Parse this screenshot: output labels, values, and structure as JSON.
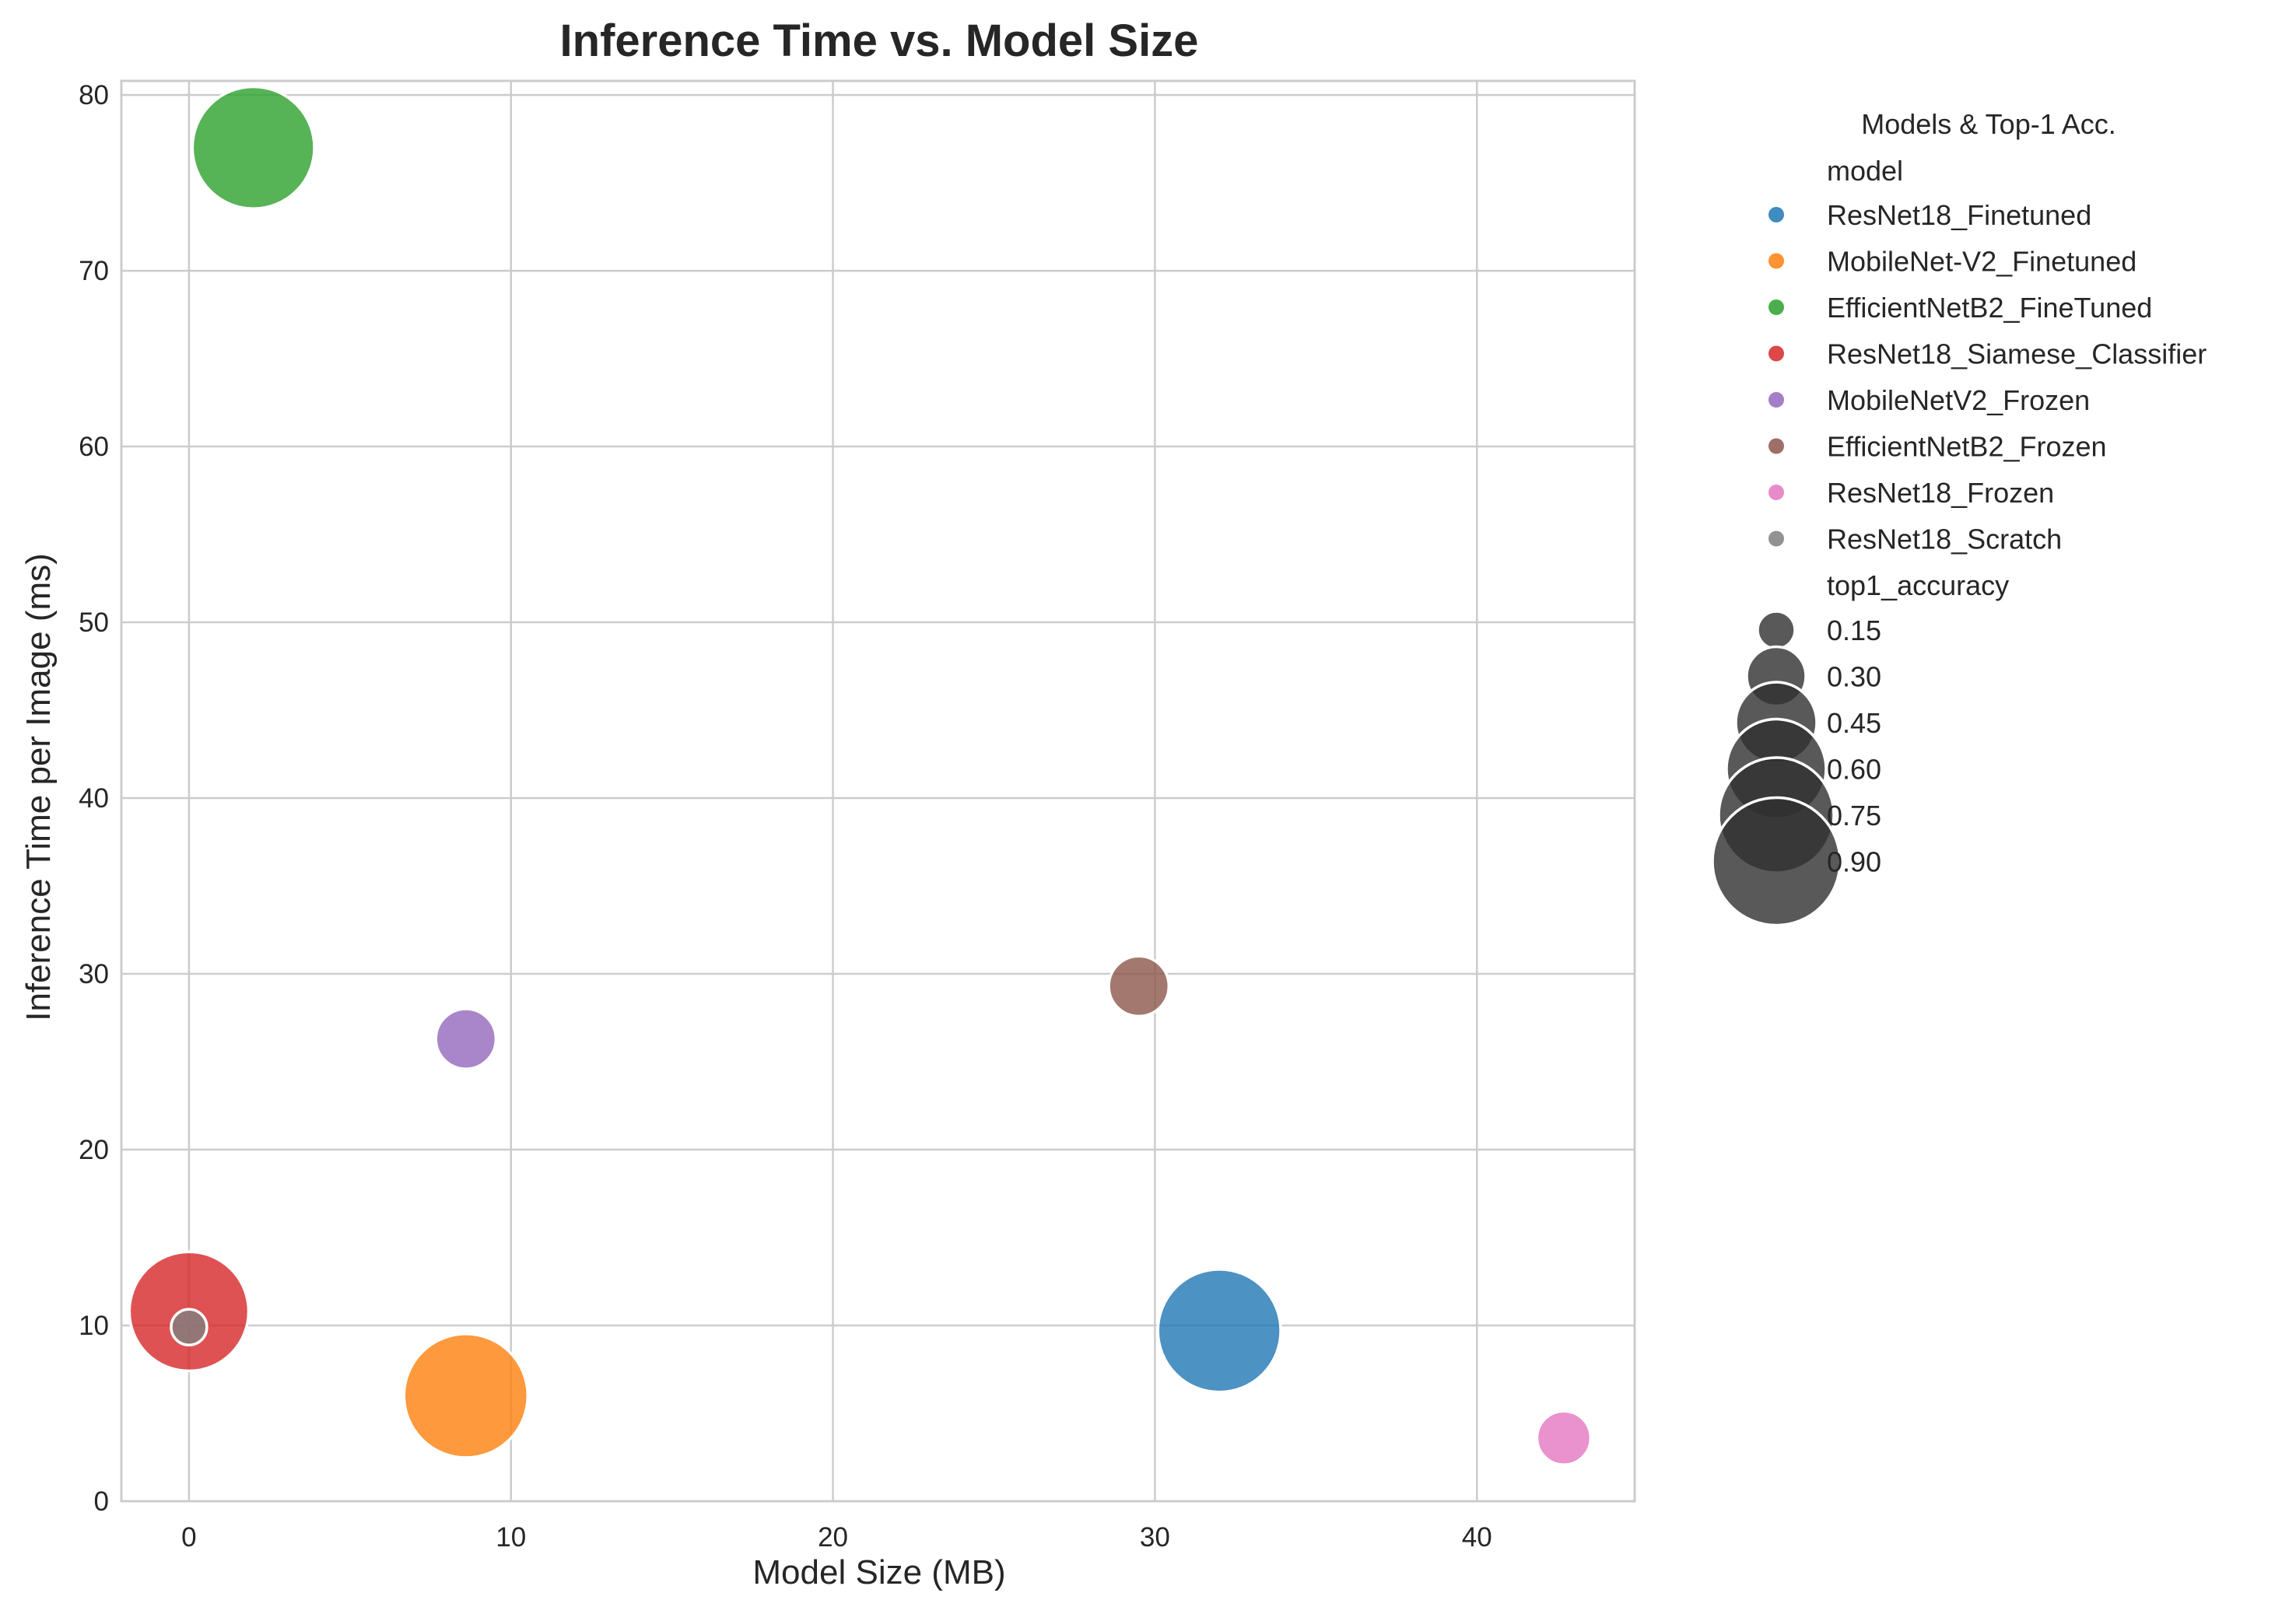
{
  "chart_data": {
    "type": "scatter",
    "title": "Inference Time vs. Model Size",
    "xlabel": "Model Size (MB)",
    "ylabel": "Inference Time per Image (ms)",
    "xlim": [
      -2.1,
      44.9
    ],
    "ylim": [
      0,
      80.8
    ],
    "xticks": [
      0,
      10,
      20,
      30,
      40
    ],
    "yticks": [
      0,
      10,
      20,
      30,
      40,
      50,
      60,
      70,
      80
    ],
    "grid": true,
    "legend": {
      "placement": "outside-right",
      "title": "Models & Top-1 Acc.",
      "hue_header": "model",
      "size_header": "top1_accuracy",
      "size_levels": [
        0.15,
        0.3,
        0.45,
        0.6,
        0.75,
        0.9
      ],
      "size_labels": [
        "0.15",
        "0.30",
        "0.45",
        "0.60",
        "0.75",
        "0.90"
      ]
    },
    "series": [
      {
        "name": "ResNet18_Finetuned",
        "color": "#1f77b4",
        "x": 32.0,
        "y": 9.7,
        "size": 0.84
      },
      {
        "name": "MobileNet-V2_Finetuned",
        "color": "#ff7f0e",
        "x": 8.6,
        "y": 6.0,
        "size": 0.85
      },
      {
        "name": "EfficientNetB2_FineTuned",
        "color": "#2ca02c",
        "x": 2.0,
        "y": 77.0,
        "size": 0.83
      },
      {
        "name": "ResNet18_Siamese_Classifier",
        "color": "#d62728",
        "x": 0.0,
        "y": 10.8,
        "size": 0.8
      },
      {
        "name": "MobileNetV2_Frozen",
        "color": "#9467bd",
        "x": 8.6,
        "y": 26.3,
        "size": 0.23
      },
      {
        "name": "EfficientNetB2_Frozen",
        "color": "#8c564b",
        "x": 29.5,
        "y": 29.3,
        "size": 0.23
      },
      {
        "name": "ResNet18_Frozen",
        "color": "#e377c2",
        "x": 42.7,
        "y": 3.6,
        "size": 0.18
      },
      {
        "name": "ResNet18_Scratch",
        "color": "#7f7f7f",
        "x": 0.0,
        "y": 9.9,
        "size": 0.06
      }
    ]
  }
}
